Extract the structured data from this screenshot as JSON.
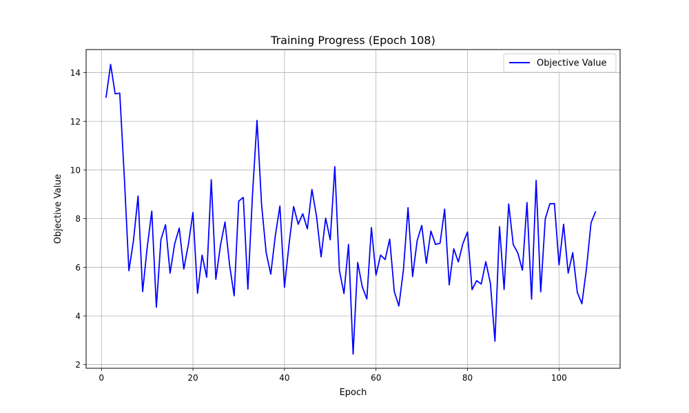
{
  "chart_data": {
    "type": "line",
    "title": "Training Progress (Epoch 108)",
    "xlabel": "Epoch",
    "ylabel": "Objective Value",
    "xlim": [
      -3.35,
      113.35
    ],
    "ylim": [
      1.85,
      14.95
    ],
    "xticks": [
      0,
      20,
      40,
      60,
      80,
      100
    ],
    "yticks": [
      2,
      4,
      6,
      8,
      10,
      12,
      14
    ],
    "grid": true,
    "legend": {
      "position": "top-right",
      "entries": [
        "Objective Value"
      ]
    },
    "series": [
      {
        "name": "Objective Value",
        "color": "#0000ff",
        "x": [
          1,
          2,
          3,
          4,
          5,
          6,
          7,
          8,
          9,
          10,
          11,
          12,
          13,
          14,
          15,
          16,
          17,
          18,
          19,
          20,
          21,
          22,
          23,
          24,
          25,
          26,
          27,
          28,
          29,
          30,
          31,
          32,
          33,
          34,
          35,
          36,
          37,
          38,
          39,
          40,
          41,
          42,
          43,
          44,
          45,
          46,
          47,
          48,
          49,
          50,
          51,
          52,
          53,
          54,
          55,
          56,
          57,
          58,
          59,
          60,
          61,
          62,
          63,
          64,
          65,
          66,
          67,
          68,
          69,
          70,
          71,
          72,
          73,
          74,
          75,
          76,
          77,
          78,
          79,
          80,
          81,
          82,
          83,
          84,
          85,
          86,
          87,
          88,
          89,
          90,
          91,
          92,
          93,
          94,
          95,
          96,
          97,
          98,
          99,
          100,
          101,
          102,
          103,
          104,
          105,
          106,
          107,
          108
        ],
        "y": [
          12.97,
          14.34,
          13.13,
          13.16,
          9.7,
          5.86,
          7.1,
          8.93,
          5.0,
          6.82,
          8.31,
          4.36,
          7.14,
          7.75,
          5.76,
          6.96,
          7.61,
          5.93,
          6.95,
          8.25,
          4.93,
          6.5,
          5.59,
          9.6,
          5.51,
          6.89,
          7.86,
          6.1,
          4.83,
          8.72,
          8.87,
          5.1,
          8.96,
          12.04,
          8.56,
          6.6,
          5.72,
          7.3,
          8.52,
          5.18,
          6.95,
          8.5,
          7.77,
          8.2,
          7.58,
          9.2,
          8.1,
          6.43,
          8.02,
          7.13,
          10.14,
          5.88,
          4.92,
          6.94,
          2.43,
          6.2,
          5.2,
          4.7,
          7.63,
          5.68,
          6.5,
          6.32,
          7.16,
          5.0,
          4.41,
          5.9,
          8.45,
          5.62,
          7.1,
          7.72,
          6.16,
          7.49,
          6.94,
          6.99,
          8.39,
          5.28,
          6.76,
          6.22,
          6.98,
          7.45,
          5.08,
          5.45,
          5.31,
          6.23,
          5.35,
          2.96,
          7.67,
          5.09,
          8.6,
          6.93,
          6.59,
          5.88,
          8.66,
          4.69,
          9.57,
          4.99,
          8.0,
          8.61,
          8.62,
          6.1,
          7.77,
          5.76,
          6.6,
          4.97,
          4.5,
          5.95,
          7.83,
          8.3
        ]
      }
    ]
  }
}
